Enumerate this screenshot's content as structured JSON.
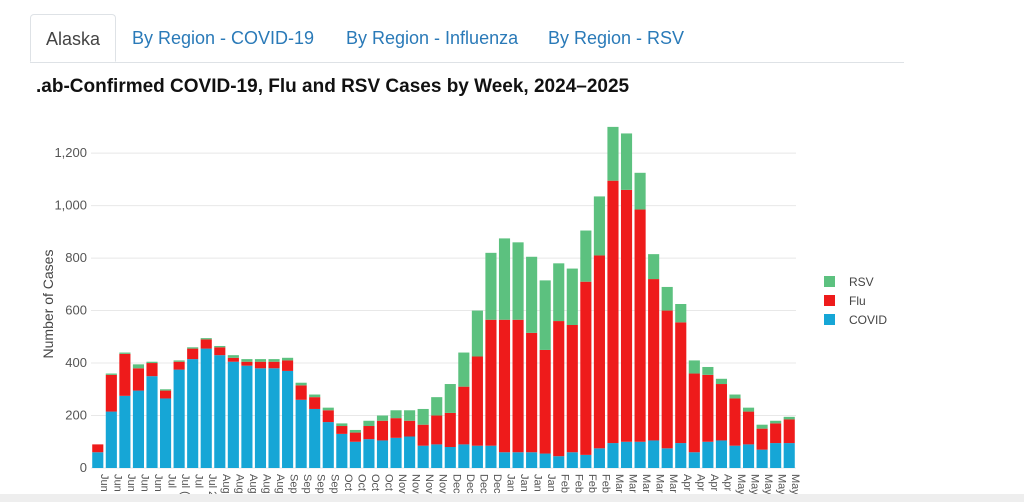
{
  "tabs": [
    {
      "label": "Alaska",
      "active": true
    },
    {
      "label": "By Region - COVID-19",
      "active": false
    },
    {
      "label": "By Region - Influenza",
      "active": false
    },
    {
      "label": "By Region - RSV",
      "active": false
    }
  ],
  "chart_data": {
    "type": "bar",
    "stacked": true,
    "title": ".ab-Confirmed COVID-19, Flu and RSV Cases by Week, 2024–2025",
    "xlabel": "",
    "ylabel": "Number of Cases",
    "ylim": [
      0,
      1250
    ],
    "yticks": [
      0,
      200,
      400,
      600,
      800,
      1000,
      1200
    ],
    "ytick_labels": [
      "0",
      "200",
      "400",
      "600",
      "800",
      "1,000",
      "1,200"
    ],
    "grid": true,
    "legend_position": "right",
    "colors": {
      "RSV": "#5cc17f",
      "Flu": "#ee1b1b",
      "COVID": "#16a6d6"
    },
    "categories": [
      "Jun",
      "Jun",
      "Jun",
      "Jun",
      "Jun",
      "Jul",
      "Jul",
      "Jul",
      "Jul",
      "Aug",
      "Aug",
      "Aug",
      "Aug",
      "Aug",
      "Sep",
      "Sep",
      "Sep",
      "Sep",
      "Oct",
      "Oct",
      "Oct",
      "Oct",
      "Nov",
      "Nov",
      "Nov",
      "Nov",
      "Dec",
      "Dec",
      "Dec",
      "Dec",
      "Jan",
      "Jan",
      "Jan",
      "Jan",
      "Feb",
      "Feb",
      "Feb",
      "Feb",
      "Mar",
      "Mar",
      "Mar",
      "Mar",
      "Mar",
      "Apr",
      "Apr",
      "Apr",
      "Apr",
      "May",
      "May",
      "May",
      "May",
      "May"
    ],
    "series": [
      {
        "name": "COVID",
        "values": [
          60,
          215,
          275,
          295,
          350,
          265,
          375,
          415,
          455,
          430,
          405,
          390,
          380,
          380,
          370,
          260,
          225,
          175,
          130,
          100,
          110,
          105,
          115,
          120,
          85,
          90,
          80,
          90,
          85,
          85,
          60,
          60,
          60,
          55,
          45,
          60,
          50,
          75,
          95,
          100,
          100,
          105,
          75,
          95,
          60,
          100,
          105,
          85,
          90,
          70,
          95,
          95
        ]
      },
      {
        "name": "Flu",
        "values": [
          30,
          140,
          160,
          85,
          50,
          30,
          30,
          40,
          35,
          30,
          15,
          15,
          25,
          25,
          40,
          55,
          45,
          45,
          30,
          35,
          50,
          75,
          75,
          60,
          80,
          110,
          130,
          220,
          340,
          480,
          505,
          505,
          455,
          395,
          515,
          485,
          660,
          735,
          1000,
          960,
          885,
          615,
          525,
          460,
          300,
          255,
          215,
          180,
          125,
          80,
          75,
          90
        ]
      },
      {
        "name": "RSV",
        "values": [
          0,
          5,
          5,
          15,
          5,
          5,
          5,
          5,
          5,
          5,
          10,
          10,
          10,
          10,
          10,
          10,
          10,
          10,
          10,
          10,
          20,
          20,
          30,
          40,
          60,
          70,
          110,
          130,
          175,
          255,
          310,
          295,
          290,
          265,
          220,
          215,
          195,
          225,
          205,
          215,
          140,
          95,
          90,
          70,
          50,
          30,
          20,
          15,
          15,
          15,
          10,
          10
        ]
      }
    ],
    "x_tick_labels": [
      "Jun",
      "Jun",
      "Jun",
      "Jun",
      "Jun",
      "Jul",
      "Jul (",
      "Jul",
      "Jul 2",
      "Aug",
      "Aug",
      "Aug",
      "Aug",
      "Aug",
      "Sep",
      "Sep",
      "Sep",
      "Sep",
      "Oct",
      "Oct",
      "Oct",
      "Oct",
      "Nov",
      "Nov",
      "Nov",
      "Nov",
      "Dec",
      "Dec",
      "Dec",
      "Dec",
      "Jan",
      "Jan",
      "Jan",
      "Jan",
      "Feb",
      "Feb",
      "Feb",
      "Feb",
      "Mar",
      "Mar",
      "Mar",
      "Mar",
      "Mar",
      "Apr",
      "Apr",
      "Apr",
      "Apr",
      "May",
      "May",
      "May",
      "May",
      "May"
    ],
    "legend": [
      "RSV",
      "Flu",
      "COVID"
    ]
  }
}
